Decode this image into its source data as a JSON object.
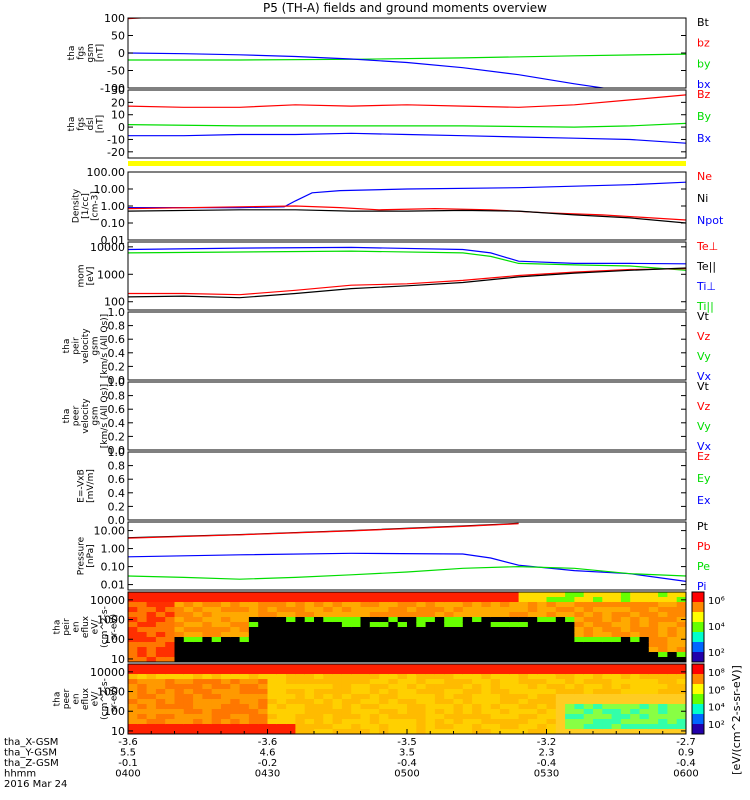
{
  "title": "P5 (TH-A) fields and ground moments overview",
  "colors": {
    "black": "#000000",
    "red": "#ff0000",
    "green": "#00dd00",
    "blue": "#0000ff",
    "yellow": "#ffff00"
  },
  "chart_data": [
    {
      "type": "line",
      "id": "fgs_gsm",
      "ylabel": [
        "tha",
        "fgs",
        "gsm",
        "[nT]"
      ],
      "ylim": [
        -100,
        100
      ],
      "yticks": [
        100,
        50,
        0,
        -50,
        -100
      ],
      "legend": [
        {
          "name": "Bt",
          "color": "black"
        },
        {
          "name": "bz",
          "color": "red"
        },
        {
          "name": "by",
          "color": "green"
        },
        {
          "name": "bx",
          "color": "blue"
        }
      ],
      "series": [
        {
          "name": "bz",
          "color": "red",
          "x": [
            0,
            0.02,
            0.04,
            0.06,
            0.08,
            0.1
          ],
          "y": [
            98,
            100,
            102,
            104,
            106,
            108
          ]
        },
        {
          "name": "by",
          "color": "green",
          "x": [
            0,
            0.2,
            0.4,
            0.6,
            0.8,
            1
          ],
          "y": [
            -20,
            -20,
            -18,
            -14,
            -8,
            -3
          ]
        },
        {
          "name": "bx",
          "color": "blue",
          "x": [
            0,
            0.1,
            0.2,
            0.3,
            0.4,
            0.5,
            0.6,
            0.7,
            0.8,
            0.86
          ],
          "y": [
            0,
            -2,
            -5,
            -10,
            -17,
            -27,
            -42,
            -62,
            -88,
            -102
          ]
        }
      ]
    },
    {
      "type": "line",
      "id": "fgs_dsl",
      "ylabel": [
        "tha",
        "fgs",
        "dsl",
        "[nT]"
      ],
      "ylim": [
        -25,
        30
      ],
      "yticks": [
        30,
        20,
        10,
        0,
        -10,
        -20
      ],
      "legend": [
        {
          "name": "Bz",
          "color": "red"
        },
        {
          "name": "By",
          "color": "green"
        },
        {
          "name": "Bx",
          "color": "blue"
        }
      ],
      "series": [
        {
          "name": "Bz",
          "color": "red",
          "x": [
            0,
            0.1,
            0.2,
            0.3,
            0.4,
            0.5,
            0.6,
            0.7,
            0.8,
            0.9,
            1
          ],
          "y": [
            17,
            16,
            16,
            18,
            17,
            18,
            17,
            16,
            18,
            22,
            26
          ]
        },
        {
          "name": "By",
          "color": "green",
          "x": [
            0,
            0.2,
            0.4,
            0.6,
            0.8,
            0.9,
            1
          ],
          "y": [
            2,
            1,
            1,
            1,
            0,
            1,
            3
          ]
        },
        {
          "name": "Bx",
          "color": "blue",
          "x": [
            0,
            0.1,
            0.2,
            0.3,
            0.4,
            0.5,
            0.6,
            0.7,
            0.8,
            0.9,
            1
          ],
          "y": [
            -7,
            -7,
            -6,
            -6,
            -5,
            -6,
            -7,
            -8,
            -9,
            -10,
            -13
          ]
        }
      ]
    },
    {
      "type": "band",
      "id": "flag_bar",
      "color": "yellow"
    },
    {
      "type": "line",
      "id": "density",
      "log": true,
      "ylabel": [
        "Density",
        "[1/cc]",
        "[cm-3]"
      ],
      "ylim": [
        0.01,
        100
      ],
      "yticks": [
        100,
        10,
        1,
        0.1,
        0.01
      ],
      "yticklabels": [
        "100.00",
        "10.00",
        "1.00",
        "0.10",
        "0.01"
      ],
      "legend": [
        {
          "name": "Ne",
          "color": "red"
        },
        {
          "name": "Ni",
          "color": "black"
        },
        {
          "name": "Npot",
          "color": "blue"
        }
      ],
      "series": [
        {
          "name": "Npot",
          "color": "blue",
          "x": [
            0,
            0.2,
            0.28,
            0.3,
            0.33,
            0.38,
            0.5,
            0.7,
            0.9,
            1
          ],
          "y": [
            0.8,
            0.8,
            0.9,
            2,
            6,
            8,
            10,
            12,
            18,
            25
          ]
        },
        {
          "name": "Ne",
          "color": "red",
          "x": [
            0,
            0.2,
            0.3,
            0.38,
            0.45,
            0.55,
            0.65,
            0.75,
            0.85,
            1
          ],
          "y": [
            0.7,
            0.9,
            1,
            0.8,
            0.6,
            0.7,
            0.6,
            0.4,
            0.3,
            0.15
          ]
        },
        {
          "name": "Ni",
          "color": "black",
          "x": [
            0,
            0.2,
            0.3,
            0.4,
            0.5,
            0.6,
            0.7,
            0.8,
            0.9,
            1
          ],
          "y": [
            0.5,
            0.6,
            0.6,
            0.5,
            0.5,
            0.55,
            0.5,
            0.3,
            0.2,
            0.1
          ]
        }
      ]
    },
    {
      "type": "line",
      "id": "mom_temp",
      "log": true,
      "ylabel": [
        "mom",
        "[eV]"
      ],
      "ylim": [
        50,
        15000
      ],
      "yticks": [
        10000,
        1000,
        100
      ],
      "yticklabels": [
        "10000",
        "1000",
        "100"
      ],
      "legend": [
        {
          "name": "Te⊥",
          "color": "red"
        },
        {
          "name": "Te||",
          "color": "black"
        },
        {
          "name": "Ti⊥",
          "color": "blue"
        },
        {
          "name": "Ti||",
          "color": "green"
        }
      ],
      "series": [
        {
          "name": "Ti⊥",
          "color": "blue",
          "x": [
            0,
            0.2,
            0.4,
            0.6,
            0.65,
            0.7,
            0.8,
            0.9,
            1
          ],
          "y": [
            8000,
            9000,
            9500,
            8000,
            6000,
            3000,
            2500,
            2500,
            2400
          ]
        },
        {
          "name": "Ti||",
          "color": "green",
          "x": [
            0,
            0.2,
            0.4,
            0.6,
            0.65,
            0.7,
            0.8,
            0.9,
            1
          ],
          "y": [
            6000,
            6500,
            7000,
            6000,
            4500,
            2500,
            2200,
            2000,
            1400
          ]
        },
        {
          "name": "Te⊥",
          "color": "red",
          "x": [
            0,
            0.1,
            0.2,
            0.3,
            0.4,
            0.5,
            0.6,
            0.7,
            0.8,
            0.9,
            1
          ],
          "y": [
            200,
            200,
            180,
            260,
            400,
            450,
            600,
            900,
            1200,
            1500,
            1600
          ]
        },
        {
          "name": "Te||",
          "color": "black",
          "x": [
            0,
            0.1,
            0.2,
            0.3,
            0.4,
            0.5,
            0.6,
            0.7,
            0.8,
            0.9,
            1
          ],
          "y": [
            150,
            160,
            140,
            200,
            300,
            380,
            500,
            800,
            1100,
            1400,
            1700
          ]
        }
      ]
    },
    {
      "type": "line",
      "id": "peir_velocity",
      "ylabel": [
        "tha",
        "peir",
        "velocity",
        "gsm",
        "[km/s (All Qs)]"
      ],
      "ylim": [
        0,
        1
      ],
      "yticks": [
        1,
        0.8,
        0.6,
        0.4,
        0.2,
        0
      ],
      "yticklabels": [
        "1.0",
        "0.8",
        "0.6",
        "0.4",
        "0.2",
        "0.0"
      ],
      "legend": [
        {
          "name": "Vt",
          "color": "black"
        },
        {
          "name": "Vz",
          "color": "red"
        },
        {
          "name": "Vy",
          "color": "green"
        },
        {
          "name": "Vx",
          "color": "blue"
        }
      ],
      "series": []
    },
    {
      "type": "line",
      "id": "peer_velocity",
      "ylabel": [
        "tha",
        "peer",
        "velocity",
        "gsm",
        "[km/s (All Qs)]"
      ],
      "ylim": [
        0,
        1
      ],
      "yticks": [
        1,
        0.8,
        0.6,
        0.4,
        0.2,
        0
      ],
      "yticklabels": [
        "1.0",
        "0.8",
        "0.6",
        "0.4",
        "0.2",
        "0.0"
      ],
      "legend": [
        {
          "name": "Vt",
          "color": "black"
        },
        {
          "name": "Vz",
          "color": "red"
        },
        {
          "name": "Vy",
          "color": "green"
        },
        {
          "name": "Vx",
          "color": "blue"
        }
      ],
      "series": []
    },
    {
      "type": "line",
      "id": "efield",
      "ylabel": [
        "E=-VxB",
        "[mV/m]"
      ],
      "ylim": [
        0,
        1
      ],
      "yticks": [
        1,
        0.8,
        0.6,
        0.4,
        0.2,
        0
      ],
      "yticklabels": [
        "1.0",
        "0.8",
        "0.6",
        "0.4",
        "0.2",
        "0.0"
      ],
      "legend": [
        {
          "name": "Ez",
          "color": "red"
        },
        {
          "name": "Ey",
          "color": "green"
        },
        {
          "name": "Ex",
          "color": "blue"
        }
      ],
      "series": []
    },
    {
      "type": "line",
      "id": "pressure",
      "log": true,
      "ylabel": [
        "Pressure",
        "[nPa]"
      ],
      "ylim": [
        0.005,
        30
      ],
      "yticks": [
        10,
        1,
        0.1,
        0.01
      ],
      "yticklabels": [
        "10.00",
        "1.00",
        "0.10",
        "0.01"
      ],
      "legend": [
        {
          "name": "Pt",
          "color": "black"
        },
        {
          "name": "Pb",
          "color": "red"
        },
        {
          "name": "Pe",
          "color": "green"
        },
        {
          "name": "Pi",
          "color": "blue"
        }
      ],
      "series": [
        {
          "name": "Pt",
          "color": "black",
          "x": [
            0,
            0.2,
            0.4,
            0.6,
            0.7
          ],
          "y": [
            4,
            6,
            10,
            18,
            25
          ]
        },
        {
          "name": "Pb",
          "color": "red",
          "x": [
            0,
            0.2,
            0.4,
            0.6,
            0.7
          ],
          "y": [
            3.8,
            5.8,
            9.6,
            17,
            24
          ]
        },
        {
          "name": "Pi",
          "color": "blue",
          "x": [
            0,
            0.2,
            0.4,
            0.6,
            0.65,
            0.7,
            0.8,
            0.9,
            1
          ],
          "y": [
            0.35,
            0.45,
            0.55,
            0.5,
            0.3,
            0.12,
            0.06,
            0.04,
            0.015
          ]
        },
        {
          "name": "Pe",
          "color": "green",
          "x": [
            0,
            0.1,
            0.2,
            0.3,
            0.4,
            0.5,
            0.6,
            0.7,
            0.8,
            0.9,
            1
          ],
          "y": [
            0.03,
            0.025,
            0.02,
            0.025,
            0.035,
            0.05,
            0.08,
            0.1,
            0.08,
            0.04,
            0.03
          ]
        }
      ]
    },
    {
      "type": "heatmap",
      "id": "peir_spec",
      "log": true,
      "ylabel": [
        "tha",
        "peir",
        "en",
        "eflux",
        "eV/",
        "(cm^2-s-",
        "sr-eV)"
      ],
      "ylim": [
        7,
        25000
      ],
      "yticks": [
        10000,
        1000,
        100,
        10
      ],
      "yticklabels": [
        "10000",
        "1000",
        "100",
        "10"
      ]
    },
    {
      "type": "heatmap",
      "id": "peer_spec",
      "log": true,
      "ylabel": [
        "tha",
        "peer",
        "en",
        "eflux",
        "eV/",
        "(cm^2-s-",
        "sr-eV)"
      ],
      "ylim": [
        7,
        25000
      ],
      "yticks": [
        10000,
        1000,
        100,
        10
      ],
      "yticklabels": [
        "10000",
        "1000",
        "100",
        "10"
      ]
    }
  ],
  "colorbars": [
    {
      "id": "peir_cbar",
      "ticks": [
        "10⁶",
        "10⁴",
        "10²"
      ],
      "label": "[eV/(cm^2-s-sr-eV)]"
    },
    {
      "id": "peer_cbar",
      "ticks": [
        "10⁸",
        "10⁶",
        "10⁴",
        "10²"
      ],
      "label": "[eV/(cm^2-s-sr-eV)]"
    }
  ],
  "xaxis": {
    "rows": [
      {
        "label": "tha_X-GSM",
        "values": [
          "-3.6",
          "-3.6",
          "-3.5",
          "-3.2",
          "-2.7"
        ]
      },
      {
        "label": "tha_Y-GSM",
        "values": [
          "5.5",
          "4.6",
          "3.5",
          "2.3",
          "0.9"
        ]
      },
      {
        "label": "tha_Z-GSM",
        "values": [
          "-0.1",
          "-0.2",
          "-0.4",
          "-0.4",
          "-0.4"
        ]
      },
      {
        "label": "hhmm",
        "values": [
          "0400",
          "0430",
          "0500",
          "0530",
          "0600"
        ]
      }
    ],
    "date": "2016 Mar 24"
  }
}
